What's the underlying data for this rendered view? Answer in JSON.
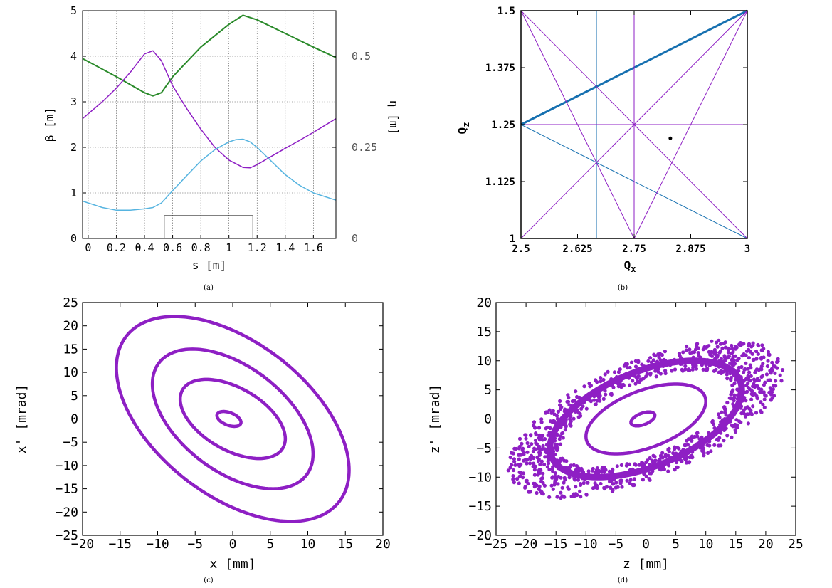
{
  "chart_data": [
    {
      "id": "a",
      "caption": "(a)",
      "type": "line",
      "xlabel": "s [m]",
      "ylabel": "β [m]",
      "ylabel_right": "η [m]",
      "xlim": [
        -0.04,
        1.76
      ],
      "ylim": [
        0,
        5
      ],
      "ylim_right": [
        0,
        0.625
      ],
      "xticks": [
        "0",
        "0.2",
        "0.4",
        "0.6",
        "0.8",
        "1",
        "1.2",
        "1.4",
        "1.6"
      ],
      "yticks": [
        "0",
        "1",
        "2",
        "3",
        "4",
        "5"
      ],
      "yticks_right": [
        "0",
        "0.25",
        "0.5"
      ],
      "grid": true,
      "series": [
        {
          "color": "#2a8a2a",
          "axis": "left",
          "x": [
            -0.04,
            0.2,
            0.4,
            0.46,
            0.52,
            0.6,
            0.8,
            1.0,
            1.1,
            1.2,
            1.4,
            1.6,
            1.76
          ],
          "y": [
            3.95,
            3.55,
            3.2,
            3.13,
            3.2,
            3.55,
            4.2,
            4.7,
            4.9,
            4.8,
            4.5,
            4.2,
            3.97
          ]
        },
        {
          "color": "#8e1fc4",
          "axis": "left",
          "x": [
            -0.04,
            0.1,
            0.2,
            0.3,
            0.4,
            0.46,
            0.52,
            0.6,
            0.7,
            0.8,
            0.9,
            1.0,
            1.1,
            1.15,
            1.2,
            1.3,
            1.4,
            1.5,
            1.6,
            1.76
          ],
          "y": [
            2.63,
            3.0,
            3.3,
            3.65,
            4.05,
            4.12,
            3.9,
            3.35,
            2.85,
            2.4,
            2.0,
            1.72,
            1.56,
            1.55,
            1.62,
            1.8,
            1.98,
            2.15,
            2.33,
            2.63
          ]
        },
        {
          "color": "#56b4e0",
          "axis": "left",
          "x": [
            -0.04,
            0.1,
            0.2,
            0.3,
            0.4,
            0.46,
            0.52,
            0.6,
            0.7,
            0.8,
            0.9,
            1.0,
            1.05,
            1.1,
            1.15,
            1.2,
            1.3,
            1.4,
            1.5,
            1.6,
            1.76
          ],
          "y": [
            0.82,
            0.68,
            0.62,
            0.62,
            0.65,
            0.68,
            0.78,
            1.05,
            1.38,
            1.7,
            1.95,
            2.12,
            2.17,
            2.18,
            2.12,
            2.0,
            1.7,
            1.4,
            1.17,
            1.0,
            0.84
          ]
        }
      ],
      "elements": [
        {
          "type": "dipole-box",
          "s_start": 0.54,
          "s_end": 1.17,
          "height": 0.5
        }
      ]
    },
    {
      "id": "b",
      "caption": "(b)",
      "type": "line",
      "xlabel": "Q",
      "xlabel_sub": "x",
      "ylabel": "Q",
      "ylabel_sub": "z",
      "xlim": [
        2.5,
        3
      ],
      "ylim": [
        1,
        1.5
      ],
      "xticks": [
        "2.5",
        "2.625",
        "2.75",
        "2.875",
        "3"
      ],
      "yticks": [
        "1",
        "1.125",
        "1.25",
        "1.375",
        "1.5"
      ],
      "series": [
        {
          "color": "#1670b0",
          "width": 3,
          "x": [
            2.5,
            3
          ],
          "y": [
            1.25,
            1.5
          ]
        },
        {
          "color": "#1670b0",
          "width": 1,
          "x": [
            2.5,
            3
          ],
          "y": [
            1.25,
            1.0
          ]
        },
        {
          "color": "#1670b0",
          "width": 1,
          "x": [
            2.6667,
            2.6667
          ],
          "y": [
            1,
            1.5
          ]
        },
        {
          "color": "#8e1fc4",
          "width": 1,
          "x": [
            2.5,
            3
          ],
          "y": [
            1.5,
            1.0
          ]
        },
        {
          "color": "#8e1fc4",
          "width": 1,
          "x": [
            2.5,
            3
          ],
          "y": [
            1.0,
            1.5
          ]
        },
        {
          "color": "#8e1fc4",
          "width": 1,
          "x": [
            2.5,
            2.75
          ],
          "y": [
            1.5,
            1.0
          ]
        },
        {
          "color": "#8e1fc4",
          "width": 1,
          "x": [
            2.75,
            3.0
          ],
          "y": [
            1.0,
            1.5
          ]
        },
        {
          "color": "#8e1fc4",
          "width": 1,
          "x": [
            2.5,
            3.0
          ],
          "y": [
            1.25,
            1.25
          ]
        },
        {
          "color": "#8e1fc4",
          "width": 1,
          "x": [
            2.75,
            2.75
          ],
          "y": [
            1.0,
            1.5
          ]
        },
        {
          "color": "#8e1fc4",
          "width": 1,
          "x": [
            2.5,
            2.5
          ],
          "y": [
            1.0,
            1.5
          ]
        }
      ],
      "points": [
        {
          "x": 2.83,
          "y": 1.22,
          "color": "#000000"
        }
      ]
    },
    {
      "id": "c",
      "caption": "(c)",
      "type": "scatter",
      "xlabel": "x [mm]",
      "ylabel": "x' [mrad]",
      "xlim": [
        -20,
        20
      ],
      "ylim": [
        -25,
        25
      ],
      "xticks": [
        "−20",
        "−15",
        "−10",
        "−5",
        "0",
        "5",
        "10",
        "15",
        "20"
      ],
      "yticks": [
        "−25",
        "−20",
        "−15",
        "−10",
        "−5",
        "0",
        "5",
        "10",
        "15",
        "20",
        "25"
      ],
      "color": "#8e1fc4",
      "ellipses": [
        {
          "cx": -0.5,
          "cy": 0,
          "rx_extent": 1.6,
          "ry_extent": 1.6,
          "tilt": -0.45
        },
        {
          "cx": 0,
          "cy": 0,
          "rx_extent": 7,
          "ry_extent": 8.5,
          "tilt": -0.5
        },
        {
          "cx": 0,
          "cy": 0,
          "rx_extent": 10.7,
          "ry_extent": 15,
          "tilt": -0.5
        },
        {
          "cx": 0,
          "cy": 0,
          "rx_extent": 15.5,
          "ry_extent": 22,
          "tilt": -0.5
        }
      ]
    },
    {
      "id": "d",
      "caption": "(d)",
      "type": "scatter",
      "xlabel": "z [mm]",
      "ylabel": "z' [mrad]",
      "xlim": [
        -25,
        25
      ],
      "ylim": [
        -20,
        20
      ],
      "xticks": [
        "−25",
        "−20",
        "−15",
        "−10",
        "−5",
        "0",
        "5",
        "10",
        "15",
        "20",
        "25"
      ],
      "yticks": [
        "−20",
        "−15",
        "−10",
        "−5",
        "0",
        "5",
        "10",
        "15",
        "20"
      ],
      "color": "#8e1fc4",
      "ellipses": [
        {
          "cx": -0.5,
          "cy": 0,
          "rx_extent": 2,
          "ry_extent": 1.2,
          "tilt": 0.5
        },
        {
          "cx": 0,
          "cy": 0,
          "rx_extent": 10,
          "ry_extent": 6,
          "tilt": 0.5
        },
        {
          "cx": 0,
          "cy": 0,
          "rx_extent": 16,
          "ry_extent": 10,
          "tilt": 0.5
        }
      ],
      "scatter_halo": {
        "cx": 0,
        "cy": 0,
        "rx_extent": 23,
        "ry_extent": 15,
        "tilt": 0.55
      }
    }
  ]
}
